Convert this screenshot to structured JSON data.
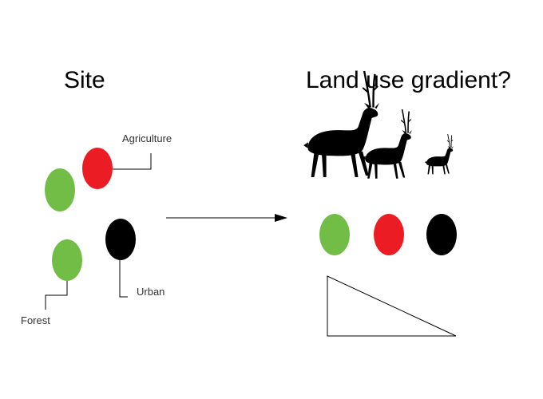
{
  "titles": {
    "site": "Site",
    "gradient": "Land use gradient?"
  },
  "labels": {
    "agriculture": "Agriculture",
    "urban": "Urban",
    "forest": "Forest"
  },
  "colors": {
    "forest": "#72bd45",
    "agriculture": "#ec1c24",
    "urban": "#000000"
  },
  "icons": {
    "animal": "deer-silhouette-icon",
    "arrow": "arrow-right-icon",
    "triangle": "declining-triangle-icon"
  }
}
